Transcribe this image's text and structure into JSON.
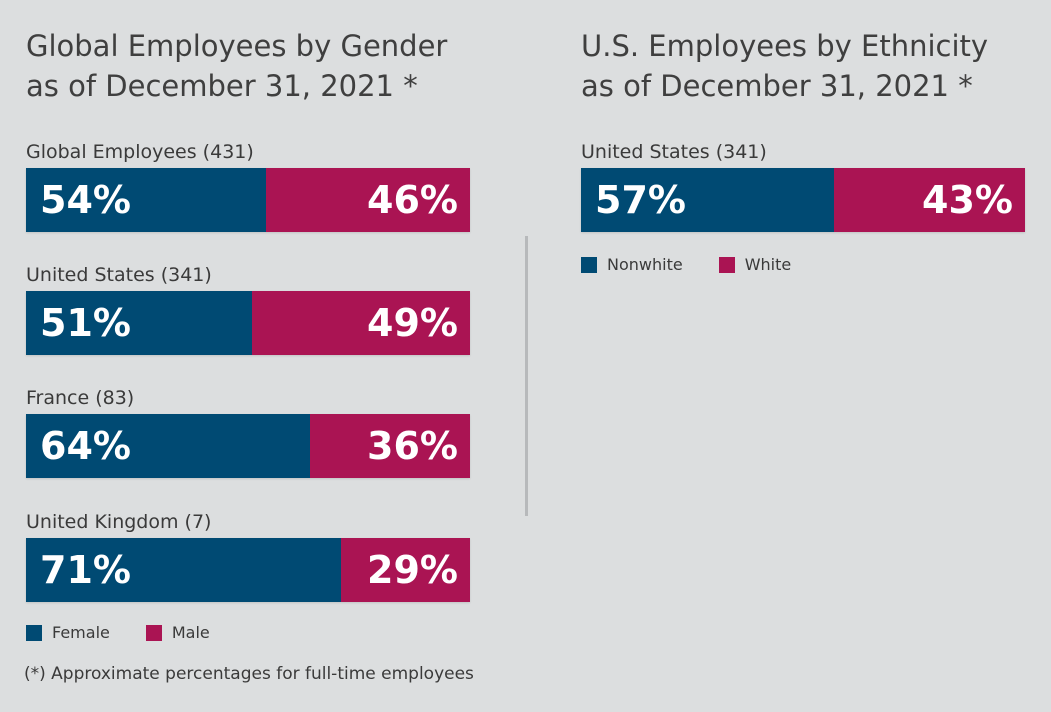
{
  "colors": {
    "primary": "#004a73",
    "secondary": "#aa1453",
    "background": "#dcdedf",
    "divider": "#b7b9bb"
  },
  "chart_data": [
    {
      "type": "bar",
      "orientation": "horizontal",
      "stacked": true,
      "title_line1": "Global Employees by Gender",
      "title_line2": "as of December 31, 2021 *",
      "categories": [
        "Global Employees (431)",
        "United States (341)",
        "France (83)",
        "United Kingdom (7)"
      ],
      "series": [
        {
          "name": "Female",
          "values": [
            54,
            51,
            64,
            71
          ],
          "labels": [
            "54%",
            "51%",
            "64%",
            "71%"
          ]
        },
        {
          "name": "Male",
          "values": [
            46,
            49,
            36,
            29
          ],
          "labels": [
            "46%",
            "49%",
            "36%",
            "29%"
          ]
        }
      ],
      "xlim": [
        0,
        100
      ],
      "legend": [
        "Female",
        "Male"
      ],
      "legend_position": "bottom-left"
    },
    {
      "type": "bar",
      "orientation": "horizontal",
      "stacked": true,
      "title_line1": "U.S. Employees by Ethnicity",
      "title_line2": "as of December 31, 2021 *",
      "categories": [
        "United States (341)"
      ],
      "series": [
        {
          "name": "Nonwhite",
          "values": [
            57
          ],
          "labels": [
            "57%"
          ]
        },
        {
          "name": "White",
          "values": [
            43
          ],
          "labels": [
            "43%"
          ]
        }
      ],
      "xlim": [
        0,
        100
      ],
      "legend": [
        "Nonwhite",
        "White"
      ],
      "legend_position": "bottom-left"
    }
  ],
  "footnote": "(*) Approximate percentages for full-time employees"
}
